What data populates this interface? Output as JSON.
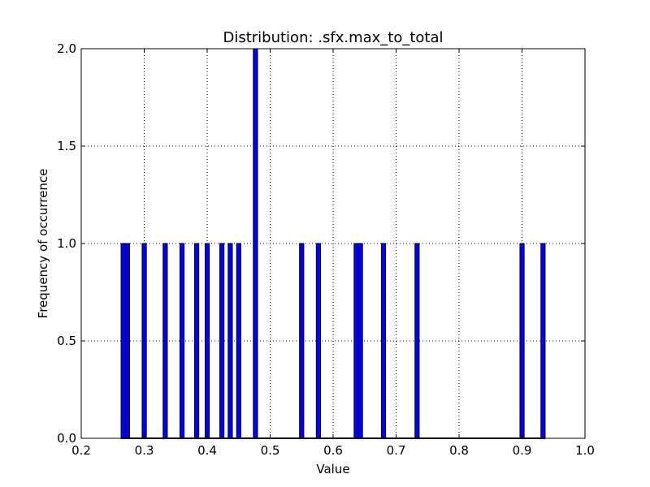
{
  "chart_data": {
    "type": "bar",
    "title": "Distribution: .sfx.max_to_total",
    "xlabel": "Value",
    "ylabel": "Frequency of occurrence",
    "xlim": [
      0.2,
      1.0
    ],
    "ylim": [
      0.0,
      2.0
    ],
    "xticks": [
      "0.2",
      "0.3",
      "0.4",
      "0.5",
      "0.6",
      "0.7",
      "0.8",
      "0.9",
      "1.0"
    ],
    "yticks": [
      "0.0",
      "0.5",
      "1.0",
      "1.5",
      "2.0"
    ],
    "grid": true,
    "bar_color": "#0000ff",
    "bin_width": 0.0067,
    "bins": [
      {
        "x": 0.2633,
        "value": 1
      },
      {
        "x": 0.27,
        "value": 1
      },
      {
        "x": 0.2967,
        "value": 1
      },
      {
        "x": 0.33,
        "value": 1
      },
      {
        "x": 0.3567,
        "value": 1
      },
      {
        "x": 0.38,
        "value": 1
      },
      {
        "x": 0.3967,
        "value": 1
      },
      {
        "x": 0.42,
        "value": 1
      },
      {
        "x": 0.4333,
        "value": 1
      },
      {
        "x": 0.4467,
        "value": 1
      },
      {
        "x": 0.4733,
        "value": 2
      },
      {
        "x": 0.5467,
        "value": 1
      },
      {
        "x": 0.5733,
        "value": 1
      },
      {
        "x": 0.6333,
        "value": 1
      },
      {
        "x": 0.64,
        "value": 1
      },
      {
        "x": 0.6767,
        "value": 1
      },
      {
        "x": 0.73,
        "value": 1
      },
      {
        "x": 0.8967,
        "value": 1
      },
      {
        "x": 0.93,
        "value": 1
      }
    ]
  }
}
